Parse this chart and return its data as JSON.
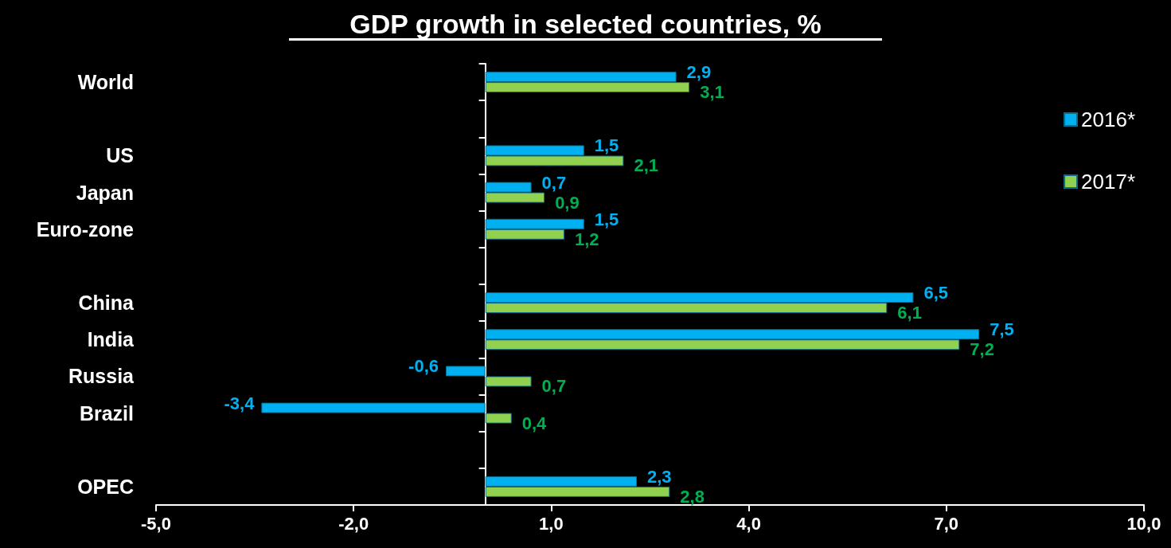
{
  "chart_data": {
    "type": "bar",
    "orientation": "horizontal",
    "title": "GDP growth in selected countries, %",
    "categories": [
      "World",
      null,
      "US",
      "Japan",
      "Euro-zone",
      null,
      "China",
      "India",
      "Russia",
      "Brazil",
      null,
      "OPEC"
    ],
    "series": [
      {
        "name": "2016*",
        "color": "#00b0f0",
        "values": [
          2.9,
          null,
          1.5,
          0.7,
          1.5,
          null,
          6.5,
          7.5,
          -0.6,
          -3.4,
          null,
          2.3
        ],
        "value_labels": [
          "2,9",
          null,
          "1,5",
          "0,7",
          "1,5",
          null,
          "6,5",
          "7,5",
          "-0,6",
          "-3,4",
          null,
          "2,3"
        ]
      },
      {
        "name": "2017*",
        "color": "#92d050",
        "values": [
          3.1,
          null,
          2.1,
          0.9,
          1.2,
          null,
          6.1,
          7.2,
          0.7,
          0.4,
          null,
          2.8
        ],
        "value_labels": [
          "3,1",
          null,
          "2,1",
          "0,9",
          "1,2",
          null,
          "6,1",
          "7,2",
          "0,7",
          "0,4",
          null,
          "2,8"
        ]
      }
    ],
    "xlim": [
      -5,
      10
    ],
    "xticks": [
      {
        "value": -5,
        "label": "-5,0"
      },
      {
        "value": -2,
        "label": "-2,0"
      },
      {
        "value": 1,
        "label": "1,0"
      },
      {
        "value": 4,
        "label": "4,0"
      },
      {
        "value": 7,
        "label": "7,0"
      },
      {
        "value": 10,
        "label": "10,0"
      }
    ],
    "grid": false,
    "legend": "top right"
  }
}
